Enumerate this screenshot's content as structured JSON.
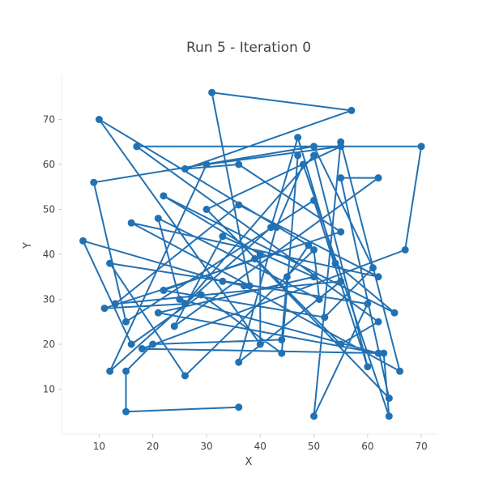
{
  "chart_data": {
    "type": "line",
    "title": "Run 5 - Iteration 0",
    "xlabel": "X",
    "ylabel": "Y",
    "xlim": [
      3,
      73
    ],
    "ylim": [
      0,
      80
    ],
    "xticks": [
      10,
      20,
      30,
      40,
      50,
      60,
      70
    ],
    "yticks": [
      10,
      20,
      30,
      40,
      50,
      60,
      70
    ],
    "grid": false,
    "line_color": "#2271b3",
    "marker_color": "#2271b3",
    "series": [
      {
        "x": [
          36,
          15,
          15,
          20,
          44,
          45,
          49,
          10,
          40,
          40,
          22,
          65,
          54,
          47,
          42,
          12,
          30,
          55,
          30,
          55,
          62,
          17,
          70,
          67,
          18,
          63,
          64,
          48,
          43,
          36,
          55,
          13,
          36,
          62,
          16,
          38,
          31,
          57,
          26,
          36,
          55,
          11,
          26,
          50,
          60,
          50,
          15,
          9,
          50,
          61,
          52,
          22,
          39,
          64,
          55,
          62,
          24,
          33,
          50,
          21,
          62,
          25,
          21,
          51,
          50,
          26,
          12,
          60,
          50,
          55,
          66,
          37,
          33,
          7,
          16,
          29,
          44,
          47
        ],
        "y": [
          6,
          5,
          14,
          20,
          21,
          35,
          42,
          70,
          20,
          40,
          53,
          27,
          38,
          66,
          46,
          14,
          60,
          64,
          50,
          20,
          25,
          64,
          64,
          41,
          19,
          18,
          4,
          60,
          46,
          16,
          34,
          29,
          51,
          35,
          47,
          33,
          76,
          72,
          59,
          60,
          45,
          28,
          29,
          62,
          15,
          52,
          25,
          56,
          64,
          37,
          26,
          32,
          39,
          8,
          57,
          57,
          24,
          44,
          35,
          27,
          18,
          30,
          48,
          30,
          41,
          13,
          38,
          29,
          4,
          65,
          14,
          33,
          34,
          43,
          20,
          31,
          18,
          62
        ]
      }
    ]
  }
}
